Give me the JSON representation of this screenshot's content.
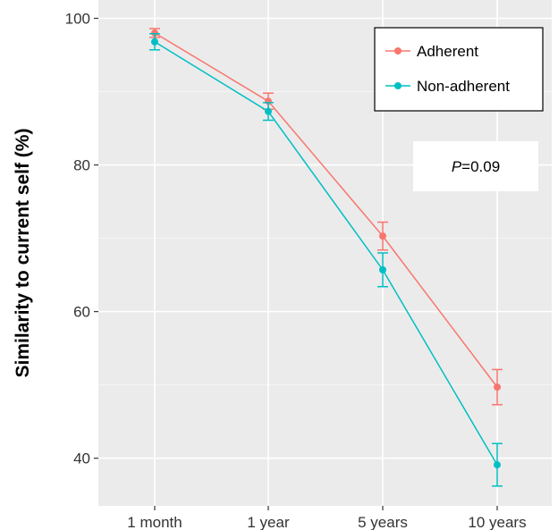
{
  "chart_data": {
    "type": "line",
    "categories": [
      "1 month",
      "1 year",
      "5 years",
      "10 years"
    ],
    "ylabel": "Similarity to current self (%)",
    "xlabel": "",
    "ylim": [
      33.5,
      102.5
    ],
    "yticks": [
      40,
      60,
      80,
      100
    ],
    "grid": true,
    "legend_position": "top-right",
    "series": [
      {
        "name": "Adherent",
        "color": "#F8766D",
        "values": [
          98.0,
          88.7,
          70.3,
          49.7
        ],
        "err_low": [
          97.4,
          87.6,
          68.4,
          47.3
        ],
        "err_high": [
          98.6,
          89.8,
          72.2,
          52.1
        ]
      },
      {
        "name": "Non-adherent",
        "color": "#00BFC4",
        "values": [
          96.8,
          87.3,
          65.7,
          39.1
        ],
        "err_low": [
          95.7,
          86.1,
          63.4,
          36.2
        ],
        "err_high": [
          97.9,
          88.5,
          68.0,
          42.0
        ]
      }
    ],
    "annotation": {
      "prefix": "P",
      "suffix": "=0.09"
    }
  }
}
